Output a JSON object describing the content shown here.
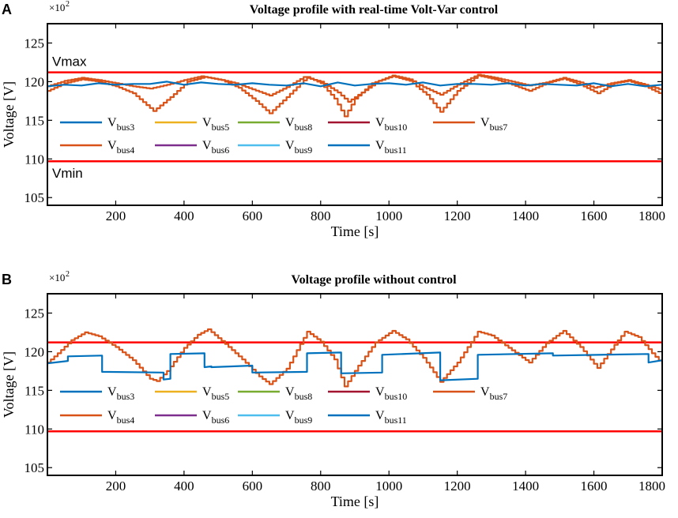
{
  "chart_data": [
    {
      "type": "line",
      "panel_label": "A",
      "title": "Voltage profile with real-time Volt-Var control",
      "xlabel": "Time [s]",
      "ylabel": "Voltage [V]",
      "scale_base": "×10",
      "scale_exp": "2",
      "xlim": [
        0,
        1800
      ],
      "ylim": [
        104,
        127.5
      ],
      "xticks": [
        200,
        400,
        600,
        800,
        1000,
        1200,
        1400,
        1600,
        1800
      ],
      "yticks": [
        105,
        110,
        115,
        120,
        125
      ],
      "limits": [
        {
          "name": "Vmax",
          "label": "Vmax",
          "value": 121.2,
          "color": "#ff0000"
        },
        {
          "name": "Vmin",
          "label": "Vmin",
          "value": 109.7,
          "color": "#ff0000"
        }
      ],
      "series": [
        {
          "name": "Vbus11 / Vbus3",
          "color": "#0072bd",
          "x": [
            0,
            50,
            100,
            150,
            200,
            250,
            300,
            350,
            400,
            450,
            500,
            550,
            600,
            650,
            700,
            750,
            800,
            850,
            900,
            950,
            1000,
            1050,
            1100,
            1150,
            1200,
            1250,
            1300,
            1350,
            1400,
            1450,
            1500,
            1550,
            1600,
            1650,
            1700,
            1750,
            1800
          ],
          "values": [
            119.4,
            119.6,
            119.5,
            119.8,
            119.6,
            119.7,
            119.7,
            120.0,
            119.6,
            119.9,
            119.7,
            119.6,
            119.8,
            119.6,
            119.5,
            119.8,
            119.4,
            119.9,
            119.5,
            119.7,
            119.8,
            119.6,
            119.9,
            119.5,
            119.7,
            119.7,
            119.6,
            119.8,
            119.5,
            119.7,
            119.6,
            119.5,
            119.8,
            119.4,
            119.7,
            119.4,
            119.6
          ]
        },
        {
          "name": "Vbus4 / Vbus7",
          "color": "#d95319",
          "x": [
            0,
            50,
            100,
            150,
            200,
            250,
            310,
            360,
            410,
            460,
            510,
            560,
            610,
            650,
            700,
            760,
            800,
            840,
            870,
            900,
            950,
            1010,
            1060,
            1110,
            1150,
            1200,
            1260,
            1310,
            1360,
            1410,
            1460,
            1510,
            1560,
            1610,
            1660,
            1700,
            1750,
            1800
          ],
          "values": [
            118.8,
            119.8,
            120.3,
            120.0,
            119.4,
            118.5,
            116.2,
            118.0,
            120.0,
            120.6,
            120.2,
            119.2,
            117.5,
            115.9,
            118.0,
            120.6,
            119.8,
            117.8,
            115.5,
            117.8,
            119.8,
            120.7,
            120.1,
            118.3,
            116.1,
            118.8,
            120.8,
            120.3,
            119.6,
            118.8,
            119.8,
            120.4,
            119.6,
            118.5,
            119.8,
            120.1,
            119.4,
            118.3
          ]
        },
        {
          "name": "Vbus7 (alt)",
          "color": "#d95319",
          "x": [
            0,
            50,
            100,
            150,
            200,
            250,
            300,
            350,
            400,
            450,
            500,
            550,
            600,
            650,
            700,
            750,
            800,
            850,
            880,
            920,
            970,
            1010,
            1060,
            1100,
            1150,
            1200,
            1260,
            1310,
            1360,
            1410,
            1460,
            1510,
            1560,
            1600,
            1650,
            1700,
            1750,
            1800
          ],
          "values": [
            119.4,
            120.1,
            120.5,
            120.2,
            119.8,
            119.4,
            119.1,
            119.6,
            120.2,
            120.7,
            120.3,
            119.8,
            119.0,
            118.2,
            119.3,
            120.6,
            120.0,
            118.6,
            117.4,
            118.6,
            120.1,
            120.8,
            120.3,
            119.3,
            118.3,
            119.6,
            120.9,
            120.5,
            120.0,
            119.5,
            119.9,
            120.5,
            119.9,
            119.2,
            119.8,
            120.2,
            119.6,
            118.9
          ]
        }
      ],
      "legend": [
        "Vbus3",
        "Vbus5",
        "Vbus8",
        "Vbus10",
        "Vbus7",
        "Vbus4",
        "Vbus6",
        "Vbus9",
        "Vbus11"
      ]
    },
    {
      "type": "line",
      "panel_label": "B",
      "title": "Voltage profile without control",
      "xlabel": "Time [s]",
      "ylabel": "Voltage [V]",
      "scale_base": "×10",
      "scale_exp": "2",
      "xlim": [
        0,
        1800
      ],
      "ylim": [
        104,
        127.5
      ],
      "xticks": [
        200,
        400,
        600,
        800,
        1000,
        1200,
        1400,
        1600,
        1800
      ],
      "yticks": [
        105,
        110,
        115,
        120,
        125
      ],
      "limits": [
        {
          "name": "Vmax",
          "label": "",
          "value": 121.2,
          "color": "#ff0000"
        },
        {
          "name": "Vmin",
          "label": "",
          "value": 109.7,
          "color": "#ff0000"
        }
      ],
      "series": [
        {
          "name": "Vbus11 / Vbus3",
          "color": "#0072bd",
          "step": true,
          "x": [
            0,
            60,
            60,
            160,
            160,
            340,
            340,
            360,
            360,
            460,
            460,
            480,
            480,
            600,
            600,
            760,
            760,
            860,
            860,
            980,
            980,
            1150,
            1150,
            1260,
            1260,
            1480,
            1480,
            1760,
            1760,
            1800
          ],
          "values": [
            118.5,
            118.8,
            119.4,
            119.5,
            117.4,
            117.3,
            116.4,
            116.5,
            119.7,
            119.8,
            118.0,
            118.1,
            118.0,
            118.2,
            117.3,
            117.4,
            119.8,
            119.9,
            117.2,
            117.3,
            119.6,
            119.9,
            116.3,
            116.5,
            119.6,
            119.8,
            119.5,
            119.7,
            118.6,
            118.9
          ]
        },
        {
          "name": "Vbus4 / Vbus7",
          "color": "#d95319",
          "x": [
            0,
            30,
            70,
            110,
            150,
            200,
            250,
            300,
            320,
            350,
            400,
            440,
            470,
            520,
            570,
            620,
            650,
            700,
            760,
            800,
            840,
            870,
            910,
            960,
            1010,
            1050,
            1100,
            1150,
            1200,
            1260,
            1300,
            1350,
            1410,
            1460,
            1510,
            1560,
            1610,
            1660,
            1690,
            1730,
            1770,
            1800
          ],
          "values": [
            118.6,
            119.8,
            121.5,
            122.5,
            122.0,
            120.6,
            118.9,
            116.5,
            116.2,
            117.5,
            120.5,
            122.2,
            122.9,
            121.0,
            119.0,
            116.8,
            115.8,
            117.8,
            122.6,
            121.3,
            119.0,
            115.5,
            118.2,
            121.2,
            122.7,
            121.6,
            119.2,
            116.1,
            118.6,
            122.6,
            122.1,
            120.5,
            118.6,
            121.1,
            122.7,
            120.6,
            117.9,
            120.9,
            122.6,
            121.9,
            119.8,
            118.4
          ]
        }
      ],
      "legend": [
        "Vbus3",
        "Vbus5",
        "Vbus8",
        "Vbus10",
        "Vbus7",
        "Vbus4",
        "Vbus6",
        "Vbus9",
        "Vbus11"
      ]
    }
  ],
  "legend_entries": [
    {
      "base": "V",
      "sub": "bus3",
      "color": "#0072bd"
    },
    {
      "base": "V",
      "sub": "bus5",
      "color": "#edb120"
    },
    {
      "base": "V",
      "sub": "bus8",
      "color": "#77ac30"
    },
    {
      "base": "V",
      "sub": "bus10",
      "color": "#a2142f"
    },
    {
      "base": "V",
      "sub": "bus7",
      "color": "#d95319"
    },
    {
      "base": "V",
      "sub": "bus4",
      "color": "#d95319"
    },
    {
      "base": "V",
      "sub": "bus6",
      "color": "#7e2f8e"
    },
    {
      "base": "V",
      "sub": "bus9",
      "color": "#4dbeee"
    },
    {
      "base": "V",
      "sub": "bus11",
      "color": "#0072bd"
    }
  ]
}
